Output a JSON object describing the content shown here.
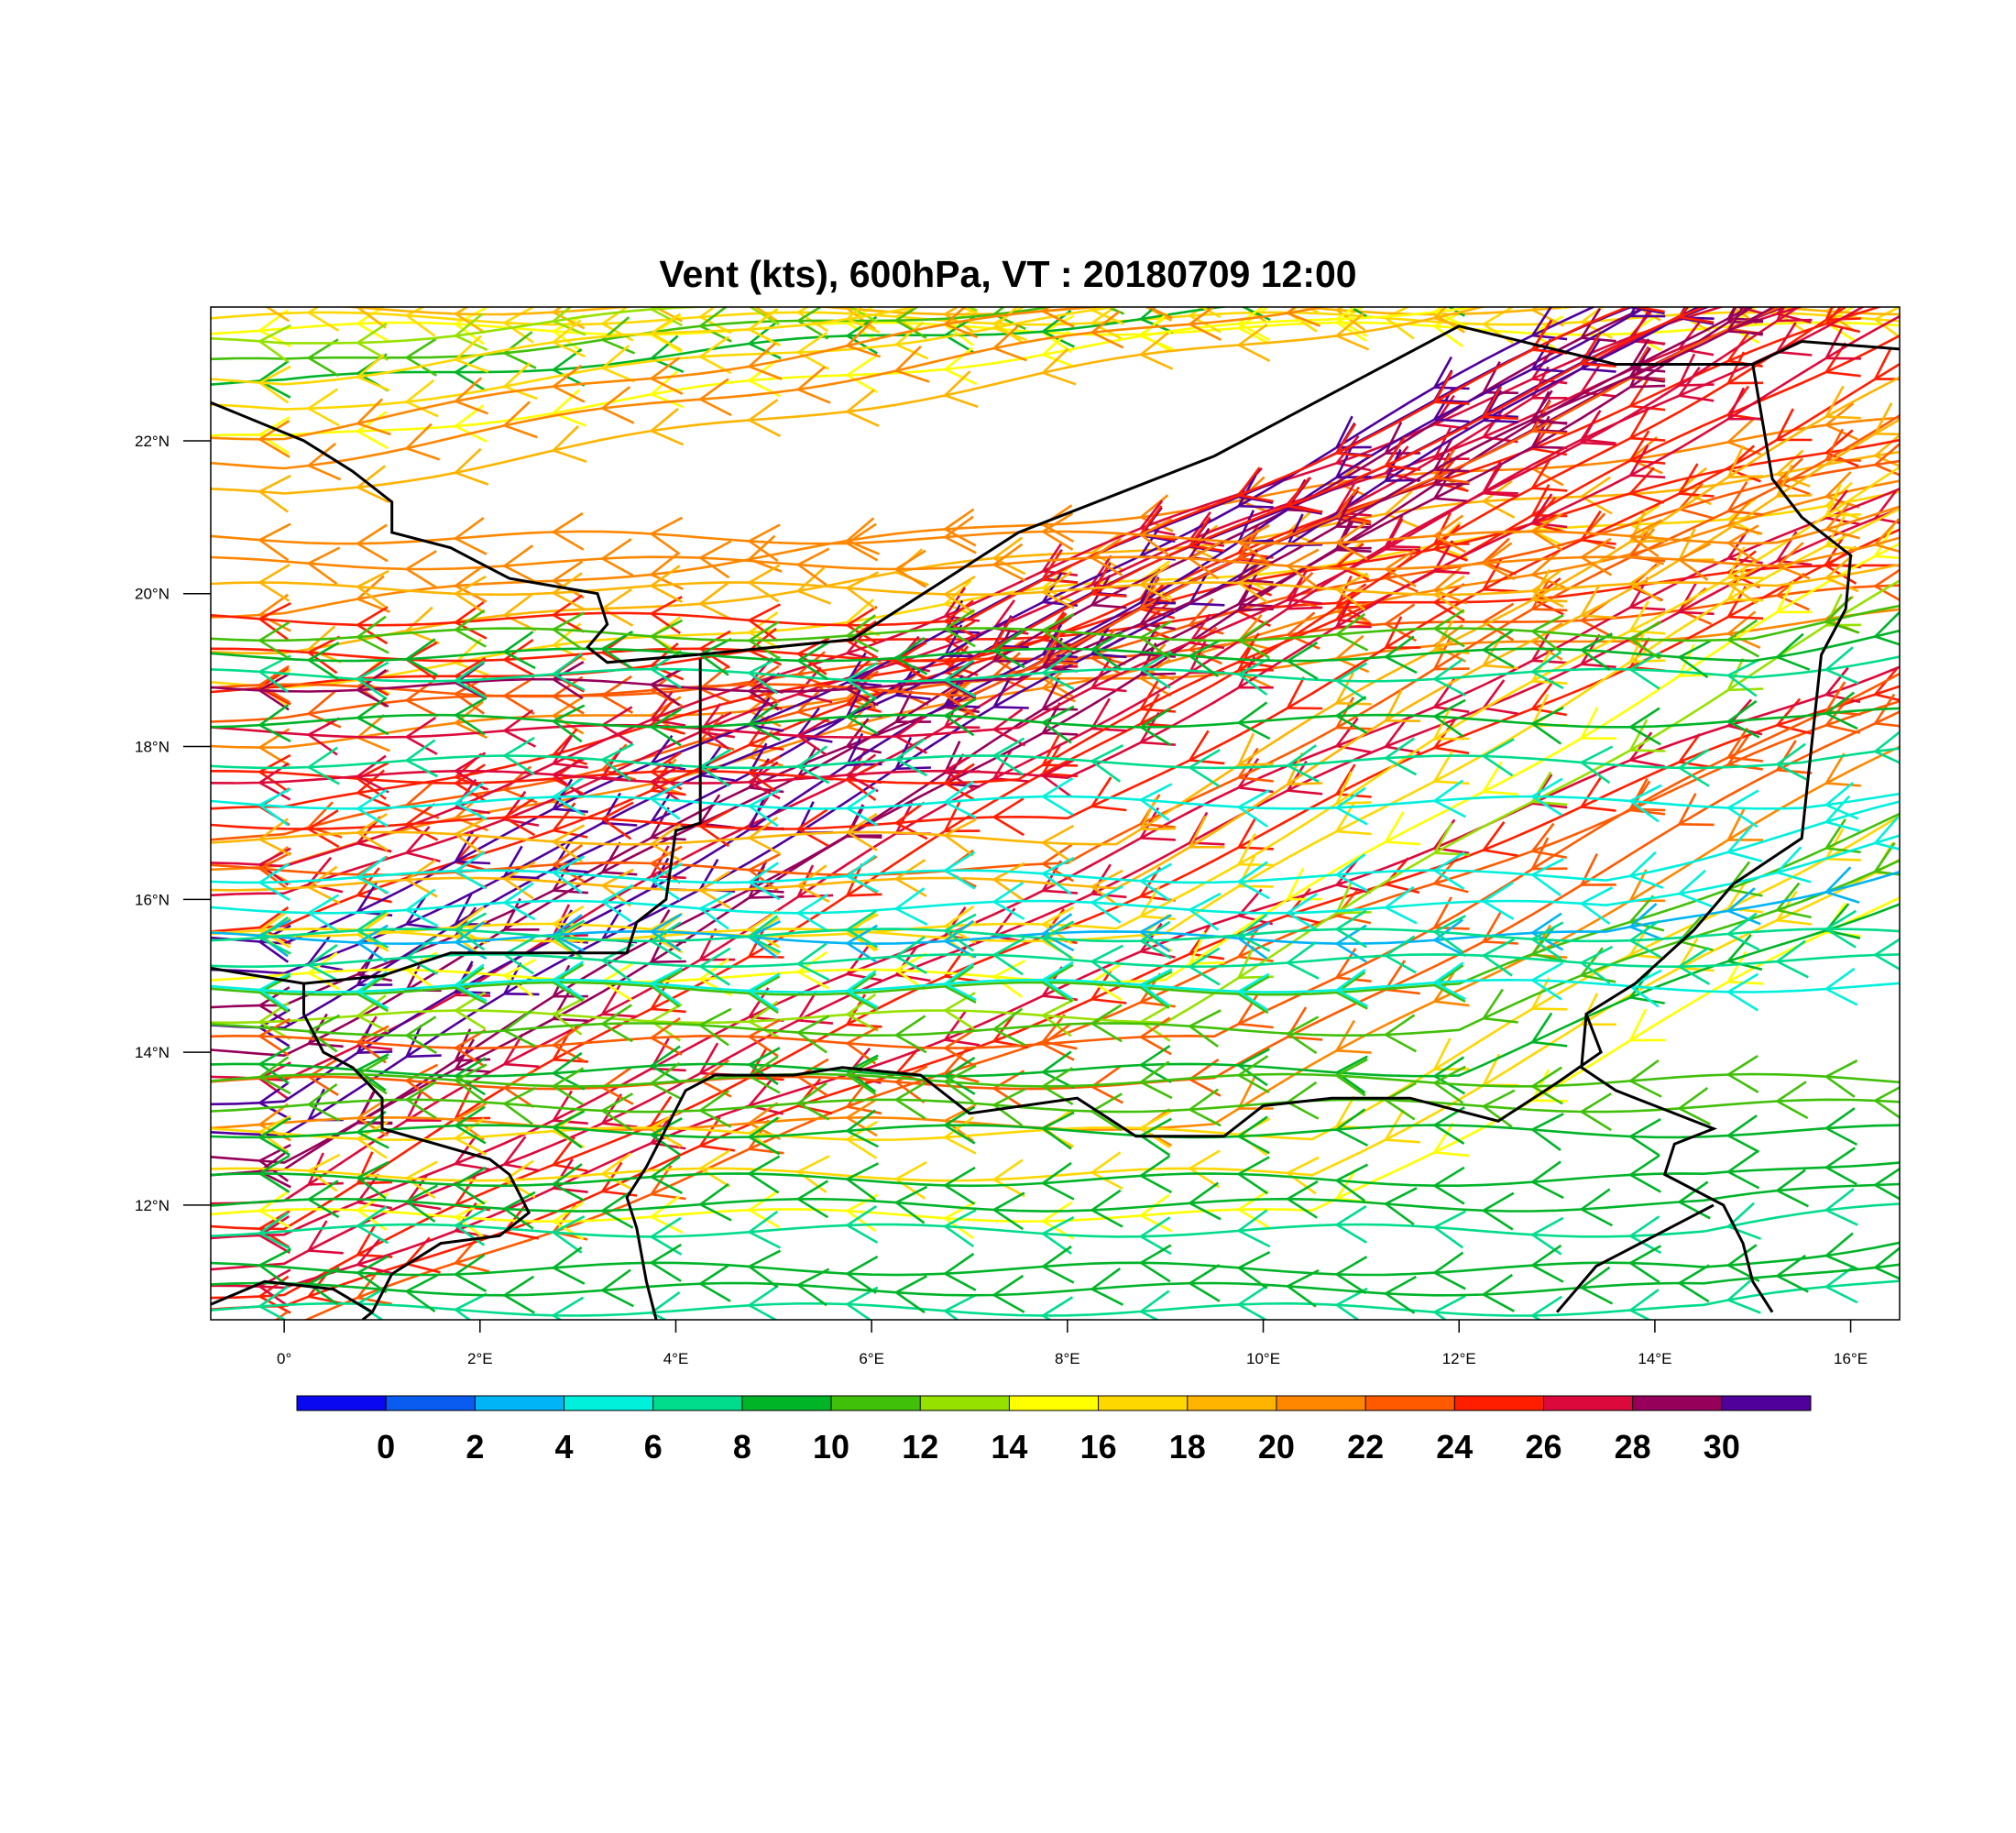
{
  "title": "Vent (kts), 600hPa, VT : 20180709  12:00",
  "map": {
    "lon_range": [
      -0.75,
      16.5
    ],
    "lat_range": [
      10.5,
      23.75
    ],
    "x_ticks": [
      {
        "lon": 0,
        "label": "0°"
      },
      {
        "lon": 2,
        "label": "2°E"
      },
      {
        "lon": 4,
        "label": "4°E"
      },
      {
        "lon": 6,
        "label": "6°E"
      },
      {
        "lon": 8,
        "label": "8°E"
      },
      {
        "lon": 10,
        "label": "10°E"
      },
      {
        "lon": 12,
        "label": "12°E"
      },
      {
        "lon": 14,
        "label": "14°E"
      },
      {
        "lon": 16,
        "label": "16°E"
      }
    ],
    "y_ticks": [
      {
        "lat": 12,
        "label": "12°N"
      },
      {
        "lat": 14,
        "label": "14°N"
      },
      {
        "lat": 16,
        "label": "16°N"
      },
      {
        "lat": 18,
        "label": "18°N"
      },
      {
        "lat": 20,
        "label": "20°N"
      },
      {
        "lat": 22,
        "label": "22°N"
      }
    ],
    "borders": [
      [
        [
          -0.75,
          22.5
        ],
        [
          0.2,
          22.0
        ],
        [
          0.7,
          21.6
        ],
        [
          1.1,
          21.2
        ],
        [
          1.1,
          20.8
        ],
        [
          1.7,
          20.6
        ],
        [
          2.3,
          20.2
        ],
        [
          3.2,
          20.0
        ],
        [
          3.3,
          19.6
        ],
        [
          3.1,
          19.3
        ],
        [
          3.3,
          19.1
        ],
        [
          4.2,
          19.2
        ],
        [
          5.8,
          19.4
        ],
        [
          7.5,
          20.8
        ],
        [
          9.5,
          21.8
        ],
        [
          12.0,
          23.5
        ],
        [
          13.6,
          23.0
        ],
        [
          15.0,
          23.0
        ],
        [
          15.5,
          23.3
        ],
        [
          16.5,
          23.2
        ]
      ],
      [
        [
          4.25,
          19.15
        ],
        [
          4.25,
          18.2
        ],
        [
          4.25,
          17.0
        ],
        [
          4.0,
          16.9
        ],
        [
          3.9,
          16.0
        ],
        [
          3.6,
          15.7
        ],
        [
          3.5,
          15.3
        ],
        [
          1.7,
          15.3
        ],
        [
          1.0,
          15.0
        ],
        [
          0.2,
          14.9
        ],
        [
          -0.75,
          15.1
        ]
      ],
      [
        [
          15.0,
          23.0
        ],
        [
          15.2,
          21.5
        ],
        [
          15.5,
          21.0
        ],
        [
          16.0,
          20.5
        ],
        [
          15.95,
          19.8
        ],
        [
          15.7,
          19.2
        ],
        [
          15.6,
          18.0
        ],
        [
          15.5,
          16.8
        ],
        [
          14.8,
          16.2
        ],
        [
          14.4,
          15.6
        ],
        [
          13.8,
          14.9
        ],
        [
          13.3,
          14.5
        ],
        [
          13.45,
          14.0
        ],
        [
          13.0,
          13.6
        ],
        [
          12.4,
          13.1
        ],
        [
          11.5,
          13.4
        ],
        [
          10.7,
          13.4
        ],
        [
          10.0,
          13.3
        ],
        [
          9.6,
          12.9
        ],
        [
          8.7,
          12.9
        ],
        [
          8.1,
          13.4
        ],
        [
          7.0,
          13.2
        ],
        [
          6.5,
          13.7
        ],
        [
          5.7,
          13.8
        ],
        [
          5.2,
          13.7
        ],
        [
          4.4,
          13.7
        ],
        [
          4.1,
          13.5
        ],
        [
          3.7,
          12.5
        ],
        [
          3.5,
          12.1
        ],
        [
          3.6,
          11.7
        ],
        [
          3.7,
          11.0
        ],
        [
          3.8,
          10.5
        ]
      ],
      [
        [
          0.2,
          14.9
        ],
        [
          0.2,
          14.5
        ],
        [
          0.4,
          14.0
        ],
        [
          0.7,
          13.8
        ],
        [
          1.0,
          13.4
        ],
        [
          1.0,
          13.0
        ],
        [
          2.1,
          12.6
        ],
        [
          2.3,
          12.4
        ],
        [
          2.5,
          11.9
        ],
        [
          2.2,
          11.6
        ],
        [
          1.6,
          11.5
        ],
        [
          1.1,
          11.1
        ],
        [
          0.9,
          10.6
        ],
        [
          0.8,
          10.5
        ]
      ],
      [
        [
          13.3,
          14.5
        ],
        [
          13.25,
          13.8
        ],
        [
          13.6,
          13.5
        ],
        [
          14.0,
          13.3
        ],
        [
          14.6,
          13.0
        ],
        [
          14.2,
          12.8
        ],
        [
          14.1,
          12.4
        ],
        [
          14.7,
          12.0
        ],
        [
          14.9,
          11.5
        ],
        [
          15.0,
          11.0
        ],
        [
          15.2,
          10.6
        ]
      ],
      [
        [
          14.6,
          12.0
        ],
        [
          14.0,
          11.6
        ],
        [
          13.4,
          11.2
        ],
        [
          13.0,
          10.6
        ]
      ],
      [
        [
          -0.75,
          10.7
        ],
        [
          -0.2,
          11.0
        ],
        [
          0.5,
          10.9
        ],
        [
          0.9,
          10.6
        ]
      ]
    ],
    "colorbar": {
      "colors": [
        "#0a08f0",
        "#0a5cf0",
        "#00b4f5",
        "#00f0dc",
        "#00dc8c",
        "#00b428",
        "#41c00a",
        "#96e100",
        "#ffff00",
        "#ffd700",
        "#ffb400",
        "#ff8700",
        "#ff5a00",
        "#ff1e00",
        "#dc0a3c",
        "#96005a",
        "#50009b"
      ],
      "labels": [
        "0",
        "2",
        "4",
        "6",
        "8",
        "10",
        "12",
        "14",
        "16",
        "18",
        "20",
        "22",
        "24",
        "26",
        "28",
        "30"
      ]
    },
    "wind_bands": [
      {
        "lat0": 23.6,
        "a": 0,
        "b": 0,
        "w": 0.2,
        "s": 17
      },
      {
        "lat0": 23.0,
        "a": 0,
        "b": 0.1,
        "w": 0.4,
        "s": 11
      },
      {
        "lat0": 22.4,
        "a": 0,
        "b": 0.15,
        "w": 0.6,
        "s": 16
      },
      {
        "lat0": 21.7,
        "a": 0,
        "b": 0.2,
        "w": 0.6,
        "s": 20
      },
      {
        "lat0": 19.3,
        "a": 0,
        "b": 0.15,
        "w": 0.7,
        "s": 19
      },
      {
        "lat0": 18.4,
        "a": 0,
        "b": 0.1,
        "w": 0.5,
        "s": 23
      },
      {
        "lat0": 16.8,
        "a": 0,
        "b": 0.3,
        "w": 0.5,
        "s": 23
      },
      {
        "lat0": 16.0,
        "a": 0,
        "b": 0.5,
        "w": 0.6,
        "s": 26
      },
      {
        "lat0": 15.0,
        "a": 0,
        "b": 0.6,
        "w": 0.7,
        "s": 30
      },
      {
        "lat0": 14.0,
        "a": 0,
        "b": 0.7,
        "w": 0.6,
        "s": 29
      },
      {
        "lat0": 13.0,
        "a": 0,
        "b": 0.75,
        "w": 0.6,
        "s": 30
      },
      {
        "lat0": 12.1,
        "a": 0,
        "b": 0.75,
        "w": 0.5,
        "s": 27
      },
      {
        "lat0": 11.2,
        "a": 0,
        "b": 0.6,
        "w": 0.5,
        "s": 26
      },
      {
        "lat0": 10.6,
        "a": 0,
        "b": 0.5,
        "w": 0.4,
        "s": 25
      },
      {
        "lat0": 19.2,
        "a": 7.0,
        "b": 0.6,
        "w": 0.7,
        "s": 24
      },
      {
        "lat0": 18.2,
        "a": 7.5,
        "b": 0.65,
        "w": 0.9,
        "s": 27
      },
      {
        "lat0": 17.0,
        "a": 8.0,
        "b": 0.7,
        "w": 0.9,
        "s": 25
      },
      {
        "lat0": 16.2,
        "a": 8.5,
        "b": 0.75,
        "w": 0.9,
        "s": 18
      },
      {
        "lat0": 15.0,
        "a": 9.0,
        "b": 0.75,
        "w": 0.8,
        "s": 15
      },
      {
        "lat0": 13.6,
        "a": 9.5,
        "b": 0.7,
        "w": 0.8,
        "s": 22
      },
      {
        "lat0": 12.4,
        "a": 10.5,
        "b": 0.7,
        "w": 0.8,
        "s": 16
      },
      {
        "lat0": 14.3,
        "a": 12.0,
        "b": 0.5,
        "w": 0.8,
        "s": 10
      },
      {
        "lat0": 15.9,
        "a": 13.5,
        "b": 0.3,
        "w": 0.6,
        "s": 4
      },
      {
        "lat0": 15.2,
        "a": 15.5,
        "b": 0.0,
        "w": 0.5,
        "s": 6
      },
      {
        "lat0": 13.3,
        "a": 15.0,
        "b": 0.0,
        "w": 0.5,
        "s": 10
      },
      {
        "lat0": 12.0,
        "a": 14.5,
        "b": 0.15,
        "w": 0.5,
        "s": 8
      },
      {
        "lat0": 10.9,
        "a": 14.5,
        "b": 0.2,
        "w": 0.4,
        "s": 8
      },
      {
        "lat0": 20.4,
        "a": 15.2,
        "b": 0.3,
        "w": 0.5,
        "s": 20
      },
      {
        "lat0": 19.2,
        "a": 15.0,
        "b": 0.2,
        "w": 0.4,
        "s": 9
      },
      {
        "lat0": 17.8,
        "a": 15.5,
        "b": 0.1,
        "w": 0.8,
        "s": 7
      }
    ]
  }
}
